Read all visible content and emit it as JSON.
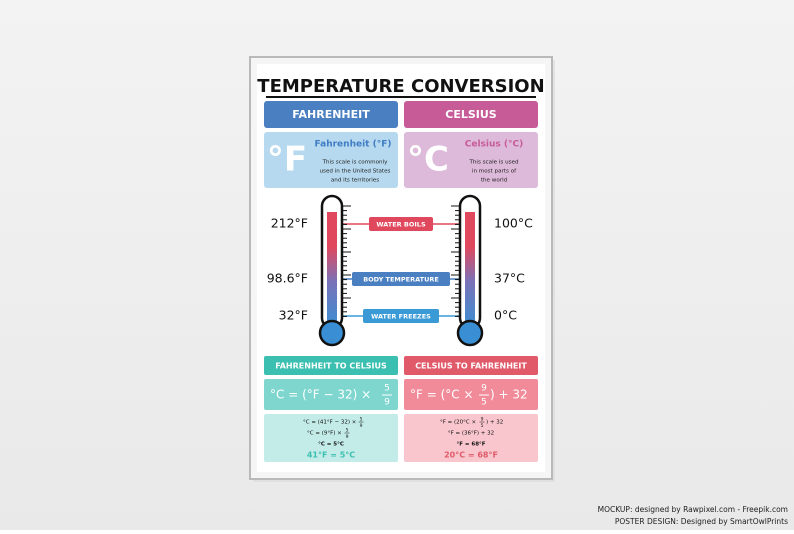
{
  "title": "TEMPERATURE CONVERSION",
  "fahrenheit": {
    "header": "FAHRENHEIT",
    "symbol": "°F",
    "name": "Fahrenheit (°F)",
    "description": [
      "This scale is commonly",
      "used in the United States",
      "and its territories"
    ]
  },
  "celsius": {
    "header": "CELSIUS",
    "symbol": "°C",
    "name": "Celsius (°C)",
    "description": [
      "This scale is used",
      "in most parts of",
      "the world"
    ]
  },
  "thermometer": {
    "fahrenheit_labels": [
      "212°F",
      "98.6°F",
      "32°F"
    ],
    "celsius_labels": [
      "100°C",
      "37°C",
      "0°C"
    ],
    "markers": [
      "WATER BOILS",
      "BODY TEMPERATURE",
      "WATER FREEZES"
    ]
  },
  "f_to_c": {
    "header": "FAHRENHEIT TO CELSIUS",
    "formula": {
      "pre": "°C = (°F − 32) ×",
      "num": "5",
      "den": "9"
    },
    "example": [
      {
        "pre": "°C = (41°F − 32) ×",
        "num": "5",
        "den": "9"
      },
      {
        "pre": "°C = (9°F) ×",
        "num": "5",
        "den": "9"
      },
      {
        "pre": "°C = 5°C"
      }
    ],
    "result": "41°F = 5°C"
  },
  "c_to_f": {
    "header": "CELSIUS TO FAHRENHEIT",
    "formula": {
      "pre": "°F = (°C ×",
      "num": "9",
      "den": "5",
      "post": ") + 32"
    },
    "example": [
      {
        "pre": "°F = (20°C ×",
        "num": "9",
        "den": "5",
        "post": ") + 32"
      },
      {
        "pre": "°F = (36°F) + 32"
      },
      {
        "pre": "°F = 68°F"
      }
    ],
    "result": "20°C = 68°F"
  },
  "credits": [
    "MOCKUP: designed by Rawpixel.com - Freepik.com",
    "POSTER DESIGN: Designed by SmartOwlPrints"
  ]
}
